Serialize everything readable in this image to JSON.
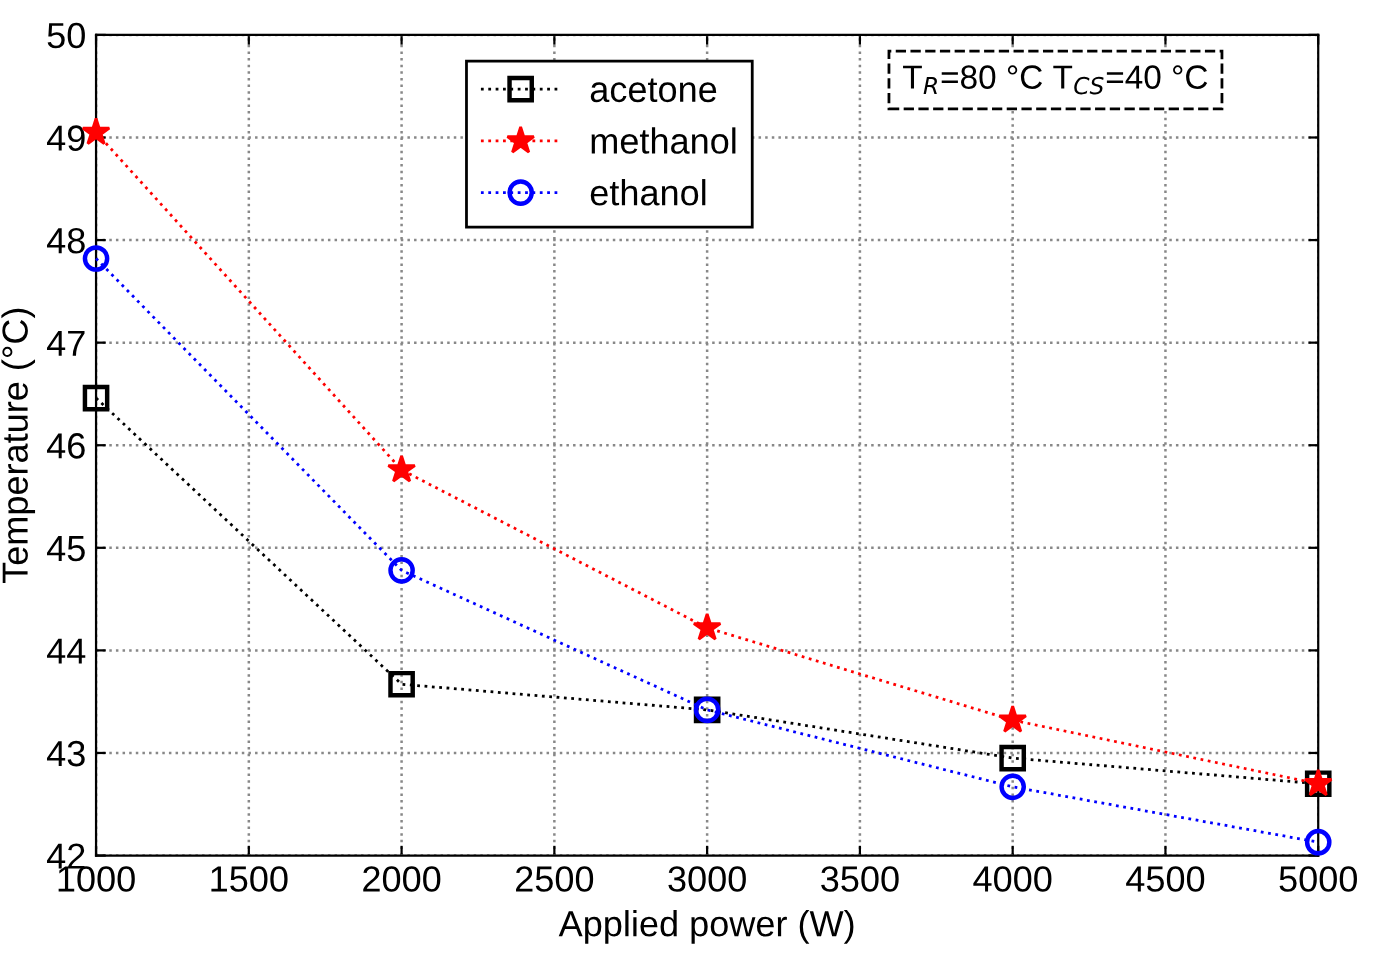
{
  "chart_data": {
    "type": "line",
    "xlabel": "Applied power (W)",
    "ylabel": "Temperature (°C)",
    "x": [
      1000,
      2000,
      3000,
      4000,
      5000
    ],
    "series": [
      {
        "name": "acetone",
        "color": "#000000",
        "marker": "square",
        "values": [
          46.46,
          43.67,
          43.42,
          42.95,
          42.7
        ]
      },
      {
        "name": "methanol",
        "color": "#ff0000",
        "marker": "star",
        "values": [
          49.05,
          45.76,
          44.22,
          43.32,
          42.7
        ]
      },
      {
        "name": "ethanol",
        "color": "#0000ff",
        "marker": "circle",
        "values": [
          47.82,
          44.78,
          43.42,
          42.67,
          42.13
        ]
      }
    ],
    "xlim": [
      1000,
      5000
    ],
    "xticks": [
      1000,
      1500,
      2000,
      2500,
      3000,
      3500,
      4000,
      4500,
      5000
    ],
    "ylim": [
      42,
      50
    ],
    "yticks": [
      42,
      43,
      44,
      45,
      46,
      47,
      48,
      49,
      50
    ],
    "grid": true,
    "legend": "top",
    "line_style": "dotted",
    "annotations": [
      "T$_{R}$=80 °C T$_{CS}$=40 °C"
    ]
  }
}
